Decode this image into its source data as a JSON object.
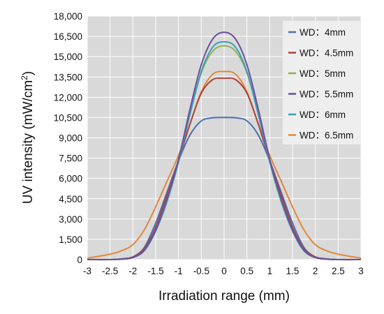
{
  "chart_data": {
    "type": "line",
    "xlabel": "Irradiation range (mm)",
    "ylabel_main": "UV intensity (mW/cm",
    "ylabel_sup": "2",
    "ylabel_end": ")",
    "xlim": [
      -3,
      3
    ],
    "ylim": [
      0,
      18000
    ],
    "x_ticks": [
      -3,
      -2.5,
      -2,
      -1.5,
      -1,
      -0.5,
      0,
      0.5,
      1,
      1.5,
      2,
      2.5,
      3
    ],
    "x_tick_labels": [
      "-3",
      "-2.5",
      "-2",
      "-1.5",
      "-1",
      "-0.5",
      "0",
      "0.5",
      "1",
      "1.5",
      "2",
      "2.5",
      "3"
    ],
    "y_ticks": [
      0,
      1500,
      3000,
      4500,
      6000,
      7500,
      9000,
      10500,
      12000,
      13500,
      15000,
      16500,
      18000
    ],
    "y_tick_labels": [
      "0",
      "1,500",
      "3,000",
      "4,500",
      "6,000",
      "7,500",
      "9,000",
      "10,500",
      "12,000",
      "13,500",
      "15,000",
      "16,500",
      "18,000"
    ],
    "grid": true,
    "legend_position": "top-right",
    "x": [
      -3,
      -2.5,
      -2.25,
      -2,
      -1.75,
      -1.5,
      -1.25,
      -1,
      -0.75,
      -0.5,
      -0.25,
      0,
      0.25,
      0.5,
      0.75,
      1,
      1.25,
      1.5,
      1.75,
      2,
      2.25,
      2.5,
      3
    ],
    "series": [
      {
        "name": "WD：4mm",
        "color": "#4a6fb0",
        "values": [
          0,
          0,
          50,
          200,
          900,
          2700,
          5000,
          7300,
          9200,
          10250,
          10480,
          10500,
          10480,
          10250,
          9200,
          7300,
          5000,
          2700,
          900,
          200,
          50,
          0,
          0
        ]
      },
      {
        "name": "WD：4.5mm",
        "color": "#b0403c",
        "values": [
          0,
          0,
          50,
          200,
          800,
          2400,
          4800,
          7300,
          10000,
          12300,
          13300,
          13400,
          13300,
          12300,
          10000,
          7300,
          4800,
          2400,
          800,
          200,
          50,
          0,
          0
        ]
      },
      {
        "name": "WD：5mm",
        "color": "#8cb14f",
        "values": [
          0,
          0,
          30,
          150,
          700,
          2200,
          4500,
          7300,
          10800,
          13800,
          15400,
          15800,
          15400,
          13800,
          10800,
          7300,
          4500,
          2200,
          700,
          150,
          30,
          0,
          0
        ]
      },
      {
        "name": "WD：5.5mm",
        "color": "#6c4e9c",
        "values": [
          0,
          0,
          30,
          150,
          700,
          2200,
          4500,
          7400,
          11100,
          14400,
          16300,
          16800,
          16300,
          14400,
          11100,
          7400,
          4500,
          2200,
          700,
          150,
          30,
          0,
          0
        ]
      },
      {
        "name": "WD：6mm",
        "color": "#3a9fb7",
        "values": [
          0,
          0,
          30,
          150,
          650,
          2100,
          4300,
          7200,
          10700,
          13900,
          15700,
          16100,
          15700,
          13900,
          10700,
          7200,
          4300,
          2100,
          650,
          150,
          30,
          0,
          0
        ]
      },
      {
        "name": "WD：6.5mm",
        "color": "#e0883a",
        "values": [
          100,
          400,
          650,
          1100,
          2200,
          3900,
          5800,
          7700,
          10000,
          12400,
          13700,
          13900,
          13700,
          12400,
          10000,
          7700,
          5800,
          3900,
          2200,
          1100,
          650,
          400,
          100
        ]
      }
    ]
  }
}
